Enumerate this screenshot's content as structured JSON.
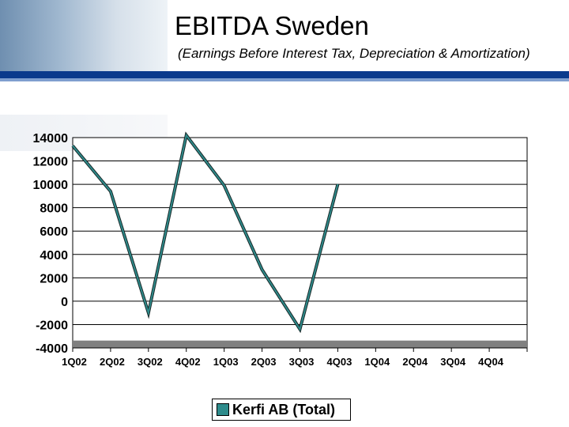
{
  "header": {
    "title": "EBITDA Sweden",
    "subtitle": "(Earnings Before Interest Tax, Depreciation & Amortization)",
    "accent_color": "#0a3a8c"
  },
  "chart_data": {
    "type": "line",
    "title": "",
    "xlabel": "",
    "ylabel": "",
    "categories": [
      "1Q02",
      "2Q02",
      "3Q02",
      "4Q02",
      "1Q03",
      "2Q03",
      "3Q03",
      "4Q03",
      "1Q04",
      "2Q04",
      "3Q04",
      "4Q04"
    ],
    "series": [
      {
        "name": "Kerfi AB (Total)",
        "color": "#2e8b8b",
        "values": [
          13300,
          9400,
          -1000,
          14200,
          9900,
          2700,
          -2400,
          10000,
          null,
          null,
          null,
          null
        ]
      }
    ],
    "ylim": [
      -4000,
      14000
    ],
    "yticks": [
      14000,
      12000,
      10000,
      8000,
      6000,
      4000,
      2000,
      0,
      -2000,
      -4000
    ],
    "grid": true,
    "legend_position": "bottom"
  }
}
